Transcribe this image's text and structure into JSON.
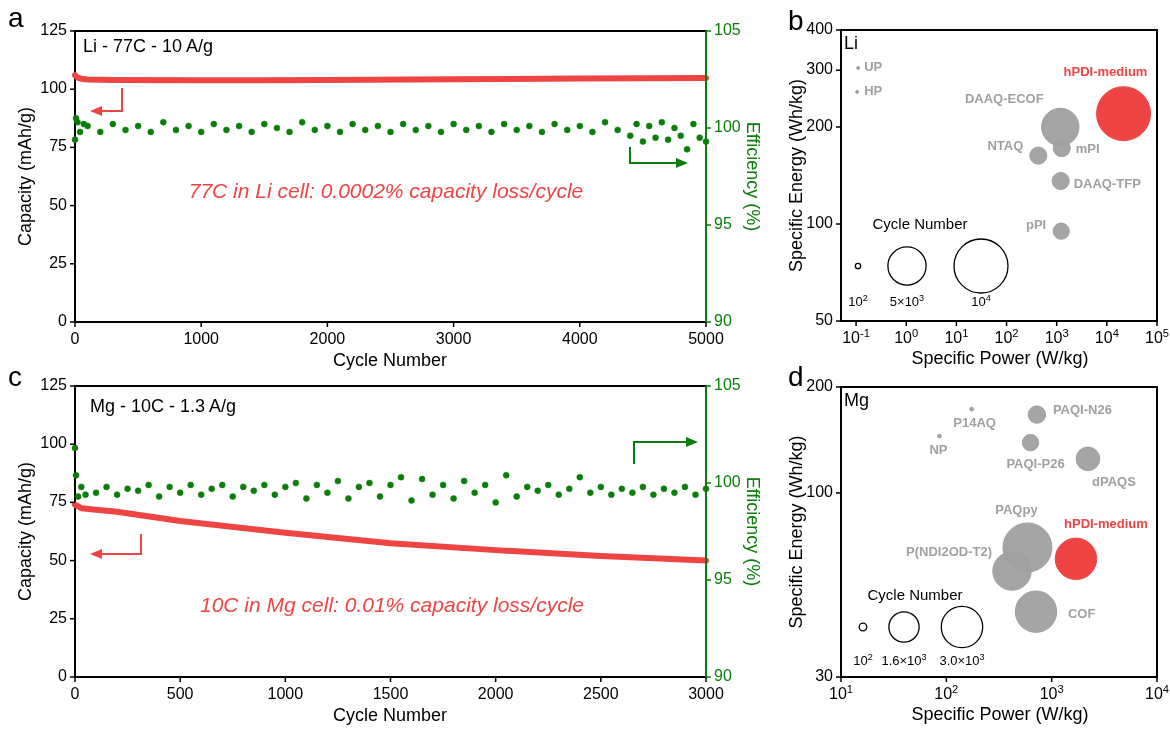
{
  "chart_data": [
    {
      "type": "line",
      "title": "a",
      "xlabel": "Cycle Number",
      "ylabel": "Capacity (mAh/g)",
      "y2label": "Efficiency (%)",
      "annotations": [
        "Li - 77C - 10 A/g",
        "77C in Li cell: 0.0002% capacity loss/cycle"
      ],
      "xlim": [
        0,
        5000
      ],
      "xticks": [
        0,
        1000,
        2000,
        3000,
        4000,
        5000
      ],
      "ylim": [
        0,
        125
      ],
      "yticks": [
        0,
        25,
        50,
        75,
        100,
        125
      ],
      "y2lim": [
        90,
        105
      ],
      "y2ticks": [
        90,
        95,
        100,
        105
      ],
      "series": [
        {
          "color": "#ef4444",
          "x": [
            0,
            20,
            50,
            100,
            300,
            1000,
            2000,
            3000,
            4000,
            5000
          ],
          "values": [
            106,
            105,
            104.5,
            104.2,
            104,
            103.8,
            104,
            104.3,
            104.6,
            104.8
          ]
        },
        {
          "type": "scatter",
          "axis": "y2",
          "marker": "circle",
          "color": "#0a7d0a",
          "x": [
            0,
            8,
            20,
            40,
            70,
            100,
            200,
            300,
            400,
            500,
            600,
            700,
            800,
            900,
            1000,
            1100,
            1200,
            1300,
            1400,
            1500,
            1600,
            1700,
            1800,
            1900,
            2000,
            2100,
            2200,
            2300,
            2400,
            2500,
            2600,
            2700,
            2800,
            2900,
            3000,
            3100,
            3200,
            3300,
            3400,
            3500,
            3600,
            3700,
            3800,
            3900,
            4000,
            4100,
            4200,
            4300,
            4400,
            4450,
            4500,
            4550,
            4600,
            4650,
            4700,
            4750,
            4800,
            4850,
            4900,
            4950,
            5000
          ],
          "values": [
            99.4,
            100.5,
            100.3,
            99.8,
            100.2,
            100.1,
            99.8,
            100.2,
            99.9,
            100.1,
            99.8,
            100.3,
            99.9,
            100.1,
            99.8,
            100.2,
            99.9,
            100.1,
            99.8,
            100.2,
            100.0,
            99.8,
            100.3,
            99.9,
            100.1,
            99.8,
            100.2,
            99.9,
            100.1,
            99.8,
            100.2,
            99.9,
            100.1,
            99.8,
            100.2,
            99.9,
            100.1,
            99.8,
            100.2,
            99.9,
            100.1,
            99.8,
            100.2,
            99.9,
            100.1,
            99.8,
            100.3,
            99.9,
            99.6,
            100.2,
            99.3,
            100.1,
            99.5,
            100.3,
            99.4,
            100.0,
            99.6,
            98.9,
            100.2,
            99.5,
            99.3
          ]
        }
      ]
    },
    {
      "type": "bubble",
      "title": "b",
      "xlabel": "Specific Power (W/kg)",
      "ylabel": "Specific Energy (Wh/kg)",
      "legend_title": "Cycle Number",
      "annotations": [
        "Li"
      ],
      "log": "xy",
      "xlim": [
        0.05,
        100000
      ],
      "xticks": [
        {
          "value": 0.1,
          "label": "10$^{-1}$"
        },
        {
          "value": 1,
          "label": "10$^{0}$"
        },
        {
          "value": 10,
          "label": "10$^{1}$"
        },
        {
          "value": 100,
          "label": "10$^{2}$"
        },
        {
          "value": 1000,
          "label": "10$^{3}$"
        },
        {
          "value": 10000,
          "label": "10$^{4}$"
        },
        {
          "value": 100000,
          "label": "10$^{5}$"
        }
      ],
      "ylim": [
        50,
        400
      ],
      "yticks": [
        50,
        100,
        200,
        300,
        400
      ],
      "size_legend": [
        {
          "value": 100,
          "label": "10$^{2}$"
        },
        {
          "value": 5000,
          "label": "5×10$^{3}$"
        },
        {
          "value": 10000,
          "label": "10$^{4}$"
        }
      ],
      "series": [
        {
          "name": "UP",
          "color": "#a0a0a0",
          "x": [
            0.11
          ],
          "values": [
            305
          ],
          "sizes": [
            30
          ]
        },
        {
          "name": "HP",
          "color": "#a0a0a0",
          "x": [
            0.105
          ],
          "values": [
            257
          ],
          "sizes": [
            30
          ]
        },
        {
          "name": "DAAQ-ECOF",
          "color": "#a0a0a0",
          "x": [
            1180
          ],
          "values": [
            200
          ],
          "sizes": [
            4800
          ]
        },
        {
          "name": "hPDI-medium",
          "color": "#ef4444",
          "x": [
            21500
          ],
          "values": [
            220
          ],
          "sizes": [
            10000
          ]
        },
        {
          "name": "NTAQ",
          "color": "#a0a0a0",
          "x": [
            430
          ],
          "values": [
            163
          ],
          "sizes": [
            1000
          ]
        },
        {
          "name": "mPI",
          "color": "#a0a0a0",
          "x": [
            1260
          ],
          "values": [
            172
          ],
          "sizes": [
            1000
          ]
        },
        {
          "name": "DAAQ-TFP",
          "color": "#a0a0a0",
          "x": [
            1200
          ],
          "values": [
            136
          ],
          "sizes": [
            1000
          ]
        },
        {
          "name": "pPI",
          "color": "#a0a0a0",
          "x": [
            1230
          ],
          "values": [
            95
          ],
          "sizes": [
            900
          ]
        }
      ]
    },
    {
      "type": "line",
      "title": "c",
      "xlabel": "Cycle Number",
      "ylabel": "Capacity (mAh/g)",
      "y2label": "Efficiency (%)",
      "annotations": [
        "Mg - 10C - 1.3 A/g",
        "10C in Mg cell: 0.01% capacity loss/cycle"
      ],
      "xlim": [
        0,
        3000
      ],
      "xticks": [
        0,
        500,
        1000,
        1500,
        2000,
        2500,
        3000
      ],
      "ylim": [
        0,
        125
      ],
      "yticks": [
        0,
        25,
        50,
        75,
        100,
        125
      ],
      "y2lim": [
        90,
        105
      ],
      "y2ticks": [
        90,
        95,
        100,
        105
      ],
      "series": [
        {
          "color": "#ef4444",
          "x": [
            0,
            30,
            100,
            200,
            500,
            1000,
            1500,
            2000,
            2500,
            3000
          ],
          "values": [
            74,
            72.5,
            71.8,
            71,
            67,
            62,
            57.5,
            54.5,
            52,
            50
          ]
        },
        {
          "type": "scatter",
          "axis": "y2",
          "marker": "circle",
          "color": "#0a7d0a",
          "x": [
            0,
            5,
            15,
            30,
            50,
            100,
            150,
            200,
            250,
            300,
            350,
            400,
            450,
            500,
            550,
            600,
            650,
            700,
            750,
            800,
            850,
            900,
            950,
            1000,
            1050,
            1100,
            1150,
            1200,
            1250,
            1300,
            1350,
            1400,
            1450,
            1500,
            1550,
            1600,
            1650,
            1700,
            1750,
            1800,
            1850,
            1900,
            1950,
            2000,
            2050,
            2100,
            2150,
            2200,
            2250,
            2300,
            2350,
            2400,
            2450,
            2500,
            2550,
            2600,
            2650,
            2700,
            2750,
            2800,
            2850,
            2900,
            2950,
            3000
          ],
          "values": [
            101.8,
            100.4,
            99.3,
            99.8,
            99.4,
            99.5,
            99.8,
            99.4,
            99.7,
            99.6,
            99.9,
            99.3,
            99.8,
            99.5,
            99.9,
            99.4,
            99.7,
            99.9,
            99.3,
            99.8,
            99.6,
            99.9,
            99.4,
            99.8,
            100.0,
            99.2,
            99.9,
            99.5,
            100.1,
            99.2,
            99.8,
            100.0,
            99.3,
            99.9,
            100.3,
            99.1,
            100.2,
            99.4,
            99.9,
            99.2,
            100.1,
            99.5,
            99.9,
            99.0,
            100.4,
            99.3,
            99.8,
            99.6,
            99.9,
            99.4,
            99.7,
            100.3,
            99.5,
            99.8,
            99.4,
            99.7,
            99.5,
            99.8,
            99.4,
            99.7,
            99.5,
            99.8,
            99.4,
            99.7
          ]
        }
      ]
    },
    {
      "type": "bubble",
      "title": "d",
      "xlabel": "Specific Power (W/kg)",
      "ylabel": "Specific Energy (Wh/kg)",
      "legend_title": "Cycle Number",
      "annotations": [
        "Mg"
      ],
      "log": "xy",
      "xlim": [
        10,
        10000
      ],
      "xticks": [
        {
          "value": 10,
          "label": "10$^{1}$"
        },
        {
          "value": 100,
          "label": "10$^{2}$"
        },
        {
          "value": 1000,
          "label": "10$^{3}$"
        },
        {
          "value": 10000,
          "label": "10$^{4}$"
        }
      ],
      "ylim": [
        30,
        200
      ],
      "yticks": [
        30,
        100,
        200
      ],
      "size_legend": [
        {
          "value": 100,
          "label": "10$^{2}$"
        },
        {
          "value": 1600,
          "label": "1.6×10$^{3}$"
        },
        {
          "value": 3000,
          "label": "3.0×10$^{3}$"
        }
      ],
      "series": [
        {
          "name": "P14AQ",
          "color": "#a0a0a0",
          "x": [
            174
          ],
          "values": [
            173
          ],
          "sizes": [
            25
          ]
        },
        {
          "name": "NP",
          "color": "#a0a0a0",
          "x": [
            86
          ],
          "values": [
            145
          ],
          "sizes": [
            25
          ]
        },
        {
          "name": "PAQI-N26",
          "color": "#a0a0a0",
          "x": [
            724
          ],
          "values": [
            167
          ],
          "sizes": [
            530
          ]
        },
        {
          "name": "PAQI-P26",
          "color": "#a0a0a0",
          "x": [
            630
          ],
          "values": [
            139
          ],
          "sizes": [
            470
          ]
        },
        {
          "name": "dPAQS",
          "color": "#a0a0a0",
          "x": [
            2210
          ],
          "values": [
            125
          ],
          "sizes": [
            975
          ]
        },
        {
          "name": "PAQpy",
          "color": "#a0a0a0",
          "x": [
            589
          ],
          "values": [
            70
          ],
          "sizes": [
            4200
          ]
        },
        {
          "name": "P(NDI2OD-T2)",
          "color": "#a0a0a0",
          "x": [
            420
          ],
          "values": [
            60
          ],
          "sizes": [
            2580
          ]
        },
        {
          "name": "hPDI-medium",
          "color": "#ef4444",
          "x": [
            1700
          ],
          "values": [
            65
          ],
          "sizes": [
            3000
          ]
        },
        {
          "name": "COF",
          "color": "#a0a0a0",
          "x": [
            710
          ],
          "values": [
            46
          ],
          "sizes": [
            3000
          ]
        }
      ]
    }
  ]
}
